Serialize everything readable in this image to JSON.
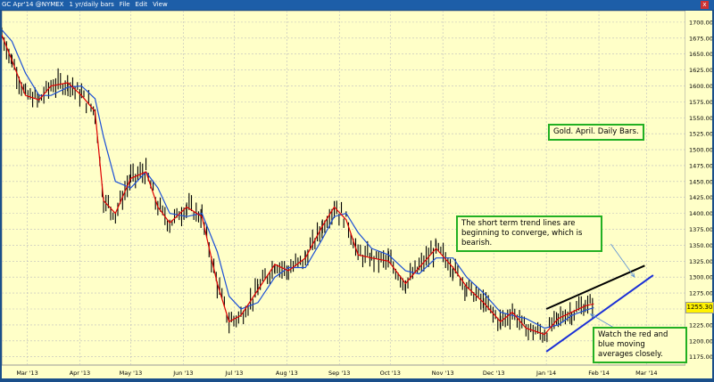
{
  "toolbar": {
    "symbol": "GC Apr'14 @NYMEX",
    "interval": "1 yr/daily bars",
    "menu_file": "File",
    "menu_edit": "Edit",
    "menu_view": "View",
    "close_glyph": "x"
  },
  "annotations": {
    "title": "Gold. April. Daily Bars.",
    "trend_note": "The short term trend lines are beginning to converge, which is bearish.",
    "ma_note": "Watch the red and blue moving averages closely."
  },
  "colors": {
    "background": "#ffffc8",
    "bars": "#000000",
    "red_ma": "#e00000",
    "blue_ma": "#1a4fd6",
    "annotation_border": "#22b022"
  },
  "chart_data": {
    "type": "line",
    "x_ticks": [
      "Mar '13",
      "Apr '13",
      "May '13",
      "Jun '13",
      "Jul '13",
      "Aug '13",
      "Sep '13",
      "Oct '13",
      "Nov '13",
      "Dec '13",
      "Jan '14",
      "Feb '14",
      "Mar '14"
    ],
    "y_ticks": [
      1175,
      1200,
      1225,
      1250,
      1275,
      1300,
      1325,
      1350,
      1375,
      1400,
      1425,
      1450,
      1475,
      1500,
      1525,
      1550,
      1575,
      1600,
      1625,
      1650,
      1675,
      1700
    ],
    "ylim": [
      1162,
      1718
    ],
    "last_price": "1255.30",
    "x_range": [
      "2013-02-14",
      "2014-03-24"
    ],
    "series": [
      {
        "values": [
          [
            "2013-02-14",
            1680
          ],
          [
            "2013-02-20",
            1640
          ],
          [
            "2013-02-28",
            1585
          ],
          [
            "2013-03-08",
            1578
          ],
          [
            "2013-03-15",
            1600
          ],
          [
            "2013-03-25",
            1605
          ],
          [
            "2013-04-02",
            1585
          ],
          [
            "2013-04-10",
            1560
          ],
          [
            "2013-04-15",
            1420
          ],
          [
            "2013-04-22",
            1400
          ],
          [
            "2013-05-01",
            1455
          ],
          [
            "2013-05-10",
            1465
          ],
          [
            "2013-05-17",
            1410
          ],
          [
            "2013-05-24",
            1385
          ],
          [
            "2013-06-03",
            1410
          ],
          [
            "2013-06-12",
            1395
          ],
          [
            "2013-06-21",
            1290
          ],
          [
            "2013-06-28",
            1230
          ],
          [
            "2013-07-05",
            1240
          ],
          [
            "2013-07-15",
            1280
          ],
          [
            "2013-07-25",
            1320
          ],
          [
            "2013-08-02",
            1310
          ],
          [
            "2013-08-12",
            1330
          ],
          [
            "2013-08-22",
            1380
          ],
          [
            "2013-08-29",
            1410
          ],
          [
            "2013-09-05",
            1390
          ],
          [
            "2013-09-12",
            1335
          ],
          [
            "2013-09-20",
            1330
          ],
          [
            "2013-09-30",
            1325
          ],
          [
            "2013-10-10",
            1290
          ],
          [
            "2013-10-18",
            1315
          ],
          [
            "2013-10-28",
            1345
          ],
          [
            "2013-11-07",
            1315
          ],
          [
            "2013-11-15",
            1285
          ],
          [
            "2013-11-25",
            1260
          ],
          [
            "2013-12-05",
            1230
          ],
          [
            "2013-12-12",
            1245
          ],
          [
            "2013-12-20",
            1220
          ],
          [
            "2013-12-31",
            1210
          ],
          [
            "2014-01-08",
            1235
          ],
          [
            "2014-01-16",
            1245
          ],
          [
            "2014-01-24",
            1255
          ],
          [
            "2014-01-29",
            1258
          ]
        ]
      },
      {
        "values": [
          [
            "2013-02-14",
            1688
          ],
          [
            "2013-02-20",
            1670
          ],
          [
            "2013-02-28",
            1620
          ],
          [
            "2013-03-08",
            1585
          ],
          [
            "2013-03-15",
            1585
          ],
          [
            "2013-03-25",
            1598
          ],
          [
            "2013-04-02",
            1600
          ],
          [
            "2013-04-10",
            1580
          ],
          [
            "2013-04-15",
            1520
          ],
          [
            "2013-04-22",
            1450
          ],
          [
            "2013-05-01",
            1440
          ],
          [
            "2013-05-10",
            1465
          ],
          [
            "2013-05-17",
            1440
          ],
          [
            "2013-05-24",
            1400
          ],
          [
            "2013-06-03",
            1395
          ],
          [
            "2013-06-12",
            1400
          ],
          [
            "2013-06-21",
            1340
          ],
          [
            "2013-06-28",
            1270
          ],
          [
            "2013-07-05",
            1250
          ],
          [
            "2013-07-15",
            1260
          ],
          [
            "2013-07-25",
            1300
          ],
          [
            "2013-08-02",
            1315
          ],
          [
            "2013-08-12",
            1315
          ],
          [
            "2013-08-22",
            1360
          ],
          [
            "2013-08-29",
            1395
          ],
          [
            "2013-09-05",
            1400
          ],
          [
            "2013-09-12",
            1370
          ],
          [
            "2013-09-20",
            1345
          ],
          [
            "2013-09-30",
            1335
          ],
          [
            "2013-10-10",
            1310
          ],
          [
            "2013-10-18",
            1305
          ],
          [
            "2013-10-28",
            1330
          ],
          [
            "2013-11-07",
            1330
          ],
          [
            "2013-11-15",
            1300
          ],
          [
            "2013-11-25",
            1275
          ],
          [
            "2013-12-05",
            1245
          ],
          [
            "2013-12-12",
            1240
          ],
          [
            "2013-12-20",
            1235
          ],
          [
            "2013-12-31",
            1220
          ],
          [
            "2014-01-08",
            1225
          ],
          [
            "2014-01-16",
            1240
          ],
          [
            "2014-01-24",
            1248
          ],
          [
            "2014-01-29",
            1252
          ]
        ]
      }
    ],
    "trendlines": [
      {
        "color": "#000000",
        "points": [
          [
            "2014-01-01",
            1250
          ],
          [
            "2014-02-28",
            1318
          ]
        ]
      },
      {
        "color": "#1a2fd6",
        "points": [
          [
            "2014-01-01",
            1183
          ],
          [
            "2014-03-05",
            1303
          ]
        ]
      }
    ],
    "arrows": [
      {
        "from": [
          "2014-02-08",
          1352
        ],
        "to": [
          "2014-02-22",
          1300
        ]
      },
      {
        "from": [
          "2014-02-20",
          1205
        ],
        "to": [
          "2014-01-27",
          1242
        ]
      }
    ]
  }
}
